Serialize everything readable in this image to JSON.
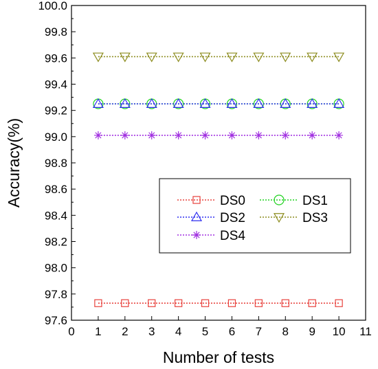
{
  "chart_data": {
    "type": "line",
    "title": "",
    "xlabel": "Number of tests",
    "ylabel": "Accuracy(%)",
    "xlim": [
      0,
      11
    ],
    "ylim": [
      97.6,
      100.0
    ],
    "xticks": [
      0,
      1,
      2,
      3,
      4,
      5,
      6,
      7,
      8,
      9,
      10,
      11
    ],
    "yticks": [
      "97.6",
      "97.8",
      "98.0",
      "98.2",
      "98.4",
      "98.6",
      "98.8",
      "99.0",
      "99.2",
      "99.4",
      "99.6",
      "99.8",
      "100.0"
    ],
    "grid": false,
    "legend_position": "center-right",
    "x": [
      1,
      2,
      3,
      4,
      5,
      6,
      7,
      8,
      9,
      10
    ],
    "series": [
      {
        "name": "DS0",
        "marker": "square",
        "color": "#e8413c",
        "values": [
          97.73,
          97.73,
          97.73,
          97.73,
          97.73,
          97.73,
          97.73,
          97.73,
          97.73,
          97.73
        ]
      },
      {
        "name": "DS1",
        "marker": "circle",
        "color": "#1fd21f",
        "values": [
          99.25,
          99.25,
          99.25,
          99.25,
          99.25,
          99.25,
          99.25,
          99.25,
          99.25,
          99.25
        ]
      },
      {
        "name": "DS2",
        "marker": "triangle-up",
        "color": "#2d2df0",
        "values": [
          99.25,
          99.25,
          99.25,
          99.25,
          99.25,
          99.25,
          99.25,
          99.25,
          99.25,
          99.25
        ]
      },
      {
        "name": "DS3",
        "marker": "triangle-down",
        "color": "#8c8c1e",
        "values": [
          99.61,
          99.61,
          99.61,
          99.61,
          99.61,
          99.61,
          99.61,
          99.61,
          99.61,
          99.61
        ]
      },
      {
        "name": "DS4",
        "marker": "asterisk",
        "color": "#a02ee0",
        "values": [
          99.01,
          99.01,
          99.01,
          99.01,
          99.01,
          99.01,
          99.01,
          99.01,
          99.01,
          99.01
        ]
      }
    ]
  }
}
